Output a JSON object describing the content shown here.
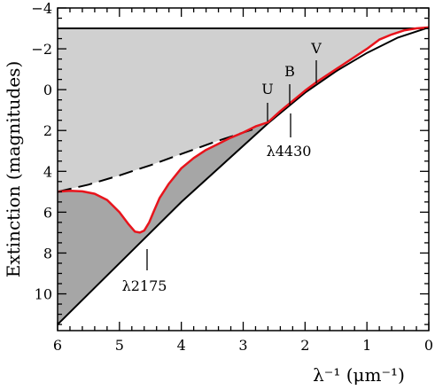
{
  "chart_data": {
    "type": "line",
    "xlabel": "λ⁻¹ (μm⁻¹)",
    "ylabel": "Extinction (magnitudes)",
    "xlim": [
      6,
      0
    ],
    "ylim": [
      11.8,
      -4
    ],
    "x_reversed": true,
    "y_reversed": true,
    "x_ticks": [
      6,
      5,
      4,
      3,
      2,
      1,
      0
    ],
    "y_ticks": [
      -4,
      -2,
      0,
      2,
      4,
      6,
      8,
      10
    ],
    "grid": false,
    "legend": "none",
    "colors": {
      "extinction_curve": "#e8141c",
      "light_fill": "#d0d0d0",
      "dark_fill": "#a6a6a6",
      "lines": "#000000"
    },
    "series": [
      {
        "style": "red-solid",
        "x": [
          6.0,
          5.8,
          5.6,
          5.4,
          5.2,
          5.0,
          4.85,
          4.75,
          4.67,
          4.6,
          4.52,
          4.45,
          4.35,
          4.2,
          4.0,
          3.8,
          3.6,
          3.4,
          3.2,
          3.0,
          2.8,
          2.6,
          2.4,
          2.2,
          2.0,
          1.8,
          1.6,
          1.4,
          1.2,
          1.0,
          0.8,
          0.6,
          0.4,
          0.2,
          0.0
        ],
        "y": [
          5.0,
          4.95,
          4.98,
          5.1,
          5.4,
          6.0,
          6.6,
          6.95,
          7.0,
          6.9,
          6.5,
          6.0,
          5.3,
          4.6,
          3.85,
          3.35,
          2.95,
          2.65,
          2.35,
          2.1,
          1.8,
          1.6,
          1.05,
          0.55,
          0.05,
          -0.4,
          -0.8,
          -1.2,
          -1.6,
          -2.0,
          -2.45,
          -2.7,
          -2.9,
          -3.0,
          -3.05
        ]
      },
      {
        "style": "black-dashed",
        "x": [
          6.0,
          5.5,
          5.0,
          4.5,
          4.0,
          3.5,
          3.0,
          2.85
        ],
        "y": [
          5.0,
          4.65,
          4.2,
          3.7,
          3.15,
          2.6,
          2.1,
          1.95
        ]
      },
      {
        "style": "black-solid",
        "x": [
          6.0,
          4.0,
          2.6,
          2.0,
          1.5,
          1.0,
          0.5,
          0.0
        ],
        "y": [
          11.5,
          5.5,
          1.65,
          0.15,
          -0.9,
          -1.8,
          -2.55,
          -3.05
        ]
      },
      {
        "style": "black-horizontal",
        "x": [
          6.0,
          0.0
        ],
        "y": [
          -3.0,
          -3.0
        ]
      }
    ],
    "annotations": [
      {
        "text": "λ2175",
        "x": 4.6,
        "y": 7.0
      },
      {
        "text": "λ4430",
        "x": 2.25,
        "y": 1.0
      },
      {
        "text": "U",
        "x": 2.6,
        "y": 1.55
      },
      {
        "text": "B",
        "x": 2.25,
        "y": 0.9
      },
      {
        "text": "V",
        "x": 1.8,
        "y": -0.35
      }
    ]
  }
}
